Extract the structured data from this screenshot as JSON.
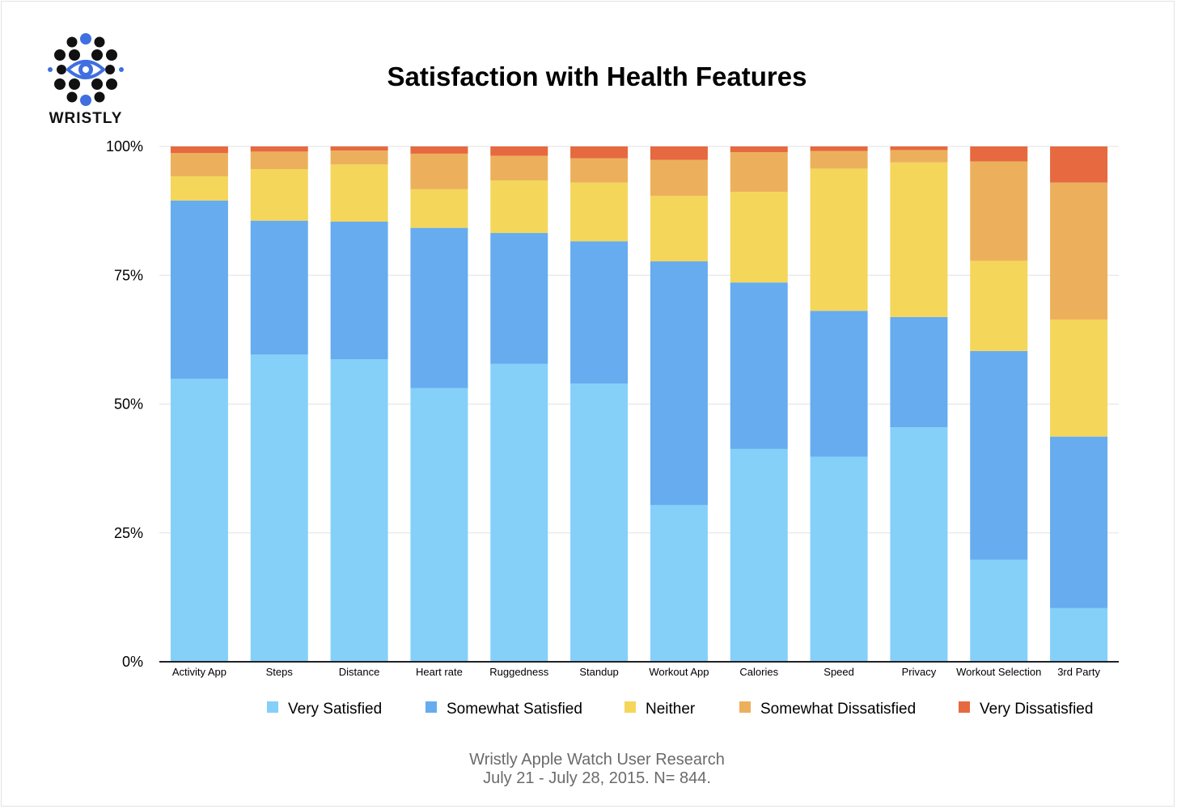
{
  "logo": {
    "text": "WRISTLY",
    "icon": "eye-dots-logo-icon"
  },
  "chart_data": {
    "type": "bar",
    "stacked": true,
    "title": "Satisfaction with Health Features",
    "xlabel": "",
    "ylabel": "",
    "ylim": [
      0,
      100
    ],
    "yticks": [
      {
        "value": 0,
        "label": "0%"
      },
      {
        "value": 25,
        "label": "25%"
      },
      {
        "value": 50,
        "label": "50%"
      },
      {
        "value": 75,
        "label": "75%"
      },
      {
        "value": 100,
        "label": "100%"
      }
    ],
    "grid": true,
    "legend": "bottom",
    "categories": [
      "Activity App",
      "Steps",
      "Distance",
      "Heart rate",
      "Ruggedness",
      "Standup",
      "Workout App",
      "Calories",
      "Speed",
      "Privacy",
      "Workout Selection",
      "3rd Party"
    ],
    "series": [
      {
        "name": "Very Satisfied",
        "color": "#84d0f9",
        "values": [
          54.9,
          59.6,
          58.7,
          53.1,
          57.8,
          54.0,
          30.4,
          41.3,
          39.8,
          45.5,
          19.8,
          10.4
        ]
      },
      {
        "name": "Somewhat Satisfied",
        "color": "#66acef",
        "values": [
          34.6,
          26.0,
          26.7,
          31.1,
          25.4,
          27.6,
          47.3,
          32.3,
          28.3,
          21.4,
          40.5,
          33.3
        ]
      },
      {
        "name": "Neither",
        "color": "#f4d65a",
        "values": [
          4.7,
          10.0,
          11.1,
          7.5,
          10.2,
          11.4,
          12.7,
          17.6,
          27.6,
          30.0,
          17.5,
          22.7
        ]
      },
      {
        "name": "Somewhat Dissatisfied",
        "color": "#ecb05c",
        "values": [
          4.5,
          3.4,
          2.7,
          6.9,
          4.8,
          4.7,
          7.0,
          7.7,
          3.4,
          2.4,
          19.3,
          26.6
        ]
      },
      {
        "name": "Very Dissatisfied",
        "color": "#e6693f",
        "values": [
          1.3,
          1.0,
          0.8,
          1.4,
          1.8,
          2.3,
          2.6,
          1.1,
          0.9,
          0.7,
          2.9,
          7.0
        ]
      }
    ]
  },
  "footer": {
    "line1": "Wristly Apple Watch User Research",
    "line2": "July 21 - July 28, 2015.  N= 844."
  }
}
